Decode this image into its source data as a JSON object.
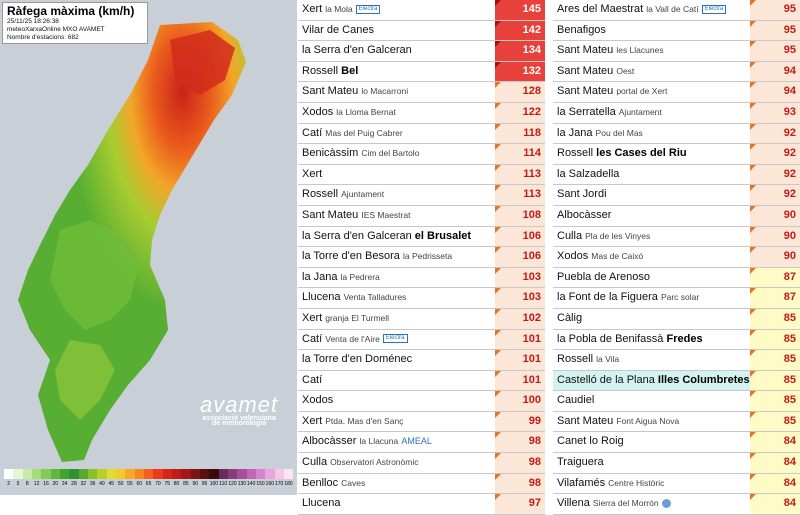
{
  "map": {
    "title": "Ràfega màxima (km/h)",
    "timestamp": "25/11/25 18:26:38",
    "network": "meteoXarxaOnline MXO AVAMET",
    "stations": "Nombre d'estacions: 682",
    "logo": "avamet",
    "logo_sub1": "associació valenciana",
    "logo_sub2": "de meteorologia",
    "scale_labels": [
      "2",
      "5",
      "8",
      "12",
      "16",
      "20",
      "24",
      "28",
      "32",
      "36",
      "40",
      "45",
      "50",
      "55",
      "60",
      "65",
      "70",
      "75",
      "80",
      "85",
      "90",
      "95",
      "100",
      "110",
      "120",
      "130",
      "140",
      "150",
      "160",
      "170",
      "180"
    ],
    "scale_colors": [
      "#ffffff",
      "#e6f5d3",
      "#c8eaa8",
      "#a6dc7c",
      "#84cc58",
      "#5fb838",
      "#3ca72a",
      "#2c9330",
      "#5aa82e",
      "#8cbf2a",
      "#b8d02c",
      "#e2dc2e",
      "#f6c82c",
      "#f8a828",
      "#f68522",
      "#f26020",
      "#ea3a1c",
      "#d8231a",
      "#bf1c1c",
      "#a01818",
      "#7d1313",
      "#5c0f0f",
      "#3f0a0a",
      "#6a2a5a",
      "#8c3c7e",
      "#a84e9c",
      "#c266b8",
      "#d884cc",
      "#e8a6dc",
      "#f4c6e8",
      "#fce4f4"
    ]
  },
  "table_left": [
    {
      "name": "Xert",
      "sub": "la Mola",
      "tag": "Electra",
      "value": "145",
      "style": "red"
    },
    {
      "name": "Vilar de Canes",
      "sub": "",
      "value": "142",
      "style": "red"
    },
    {
      "name": "la Serra d'en Galceran",
      "sub": "",
      "value": "134",
      "style": "red"
    },
    {
      "name": "Rossell",
      "bold": "Bel",
      "value": "132",
      "style": "red"
    },
    {
      "name": "Sant Mateu",
      "sub": "lo Macarroni",
      "value": "128",
      "style": "peach"
    },
    {
      "name": "Xodos",
      "sub": "la Lloma Bernat",
      "value": "122",
      "style": "peach"
    },
    {
      "name": "Catí",
      "sub": "Mas del Puig Cabrer",
      "value": "118",
      "style": "peach"
    },
    {
      "name": "Benicàssim",
      "sub": "Cim del Bartolo",
      "value": "114",
      "style": "peach"
    },
    {
      "name": "Xert",
      "sub": "",
      "value": "113",
      "style": "peach"
    },
    {
      "name": "Rossell",
      "sub": "Ajuntament",
      "value": "113",
      "style": "peach"
    },
    {
      "name": "Sant Mateu",
      "sub": "IES Maestrat",
      "value": "108",
      "style": "peach"
    },
    {
      "name": "la Serra d'en Galceran",
      "bold": "el Brusalet",
      "value": "106",
      "style": "peach"
    },
    {
      "name": "la Torre d'en Besora",
      "sub": "la Pedrisseta",
      "value": "106",
      "style": "peach"
    },
    {
      "name": "la Jana",
      "sub": "la Pedrera",
      "value": "103",
      "style": "peach"
    },
    {
      "name": "Llucena",
      "sub": "Venta Talladures",
      "value": "103",
      "style": "peach"
    },
    {
      "name": "Xert",
      "sub": "granja El Turmell",
      "value": "102",
      "style": "peach"
    },
    {
      "name": "Catí",
      "sub": "Venta de l'Aire",
      "tag": "Electra",
      "value": "101",
      "style": "peach"
    },
    {
      "name": "la Torre d'en Doménec",
      "sub": "",
      "value": "101",
      "style": "peach"
    },
    {
      "name": "Catí",
      "sub": "",
      "value": "101",
      "style": "peach"
    },
    {
      "name": "Xodos",
      "sub": "",
      "value": "100",
      "style": "peach"
    },
    {
      "name": "Xert",
      "sub": "Ptda. Mas d'en Sanç",
      "value": "99",
      "style": "peach"
    },
    {
      "name": "Albocàsser",
      "sub": "la Llacuna",
      "blue": "AMEAL",
      "value": "98",
      "style": "peach"
    },
    {
      "name": "Culla",
      "sub": "Observatori Astronòmic",
      "value": "98",
      "style": "peach"
    },
    {
      "name": "Benlloc",
      "sub": "Caves",
      "value": "98",
      "style": "peach"
    },
    {
      "name": "Llucena",
      "sub": "",
      "value": "97",
      "style": "peach"
    }
  ],
  "table_right": [
    {
      "name": "Ares del Maestrat",
      "sub": "la Vall de Catí",
      "tag": "Electra",
      "value": "95",
      "style": "peach"
    },
    {
      "name": "Benafigos",
      "sub": "",
      "value": "95",
      "style": "peach"
    },
    {
      "name": "Sant Mateu",
      "sub": "les Llacunes",
      "value": "95",
      "style": "peach"
    },
    {
      "name": "Sant Mateu",
      "sub": "Oest",
      "value": "94",
      "style": "peach"
    },
    {
      "name": "Sant Mateu",
      "sub": "portal de Xert",
      "value": "94",
      "style": "peach"
    },
    {
      "name": "la Serratella",
      "sub": "Ajuntament",
      "value": "93",
      "style": "peach"
    },
    {
      "name": "la Jana",
      "sub": "Pou del Mas",
      "value": "92",
      "style": "peach"
    },
    {
      "name": "Rossell",
      "bold": "les Cases del Riu",
      "value": "92",
      "style": "peach"
    },
    {
      "name": "la Salzadella",
      "sub": "",
      "value": "92",
      "style": "peach"
    },
    {
      "name": "Sant Jordi",
      "sub": "",
      "value": "92",
      "style": "peach"
    },
    {
      "name": "Albocàsser",
      "sub": "",
      "value": "90",
      "style": "peach"
    },
    {
      "name": "Culla",
      "sub": "Pla de les Vinyes",
      "value": "90",
      "style": "peach"
    },
    {
      "name": "Xodos",
      "sub": "Mas de Caixó",
      "value": "90",
      "style": "peach"
    },
    {
      "name": "Puebla de Arenoso",
      "sub": "",
      "value": "87",
      "style": "yellow"
    },
    {
      "name": "la Font de la Figuera",
      "sub": "Parc solar",
      "value": "87",
      "style": "yellow"
    },
    {
      "name": "Càlig",
      "sub": "",
      "value": "85",
      "style": "yellow"
    },
    {
      "name": "la Pobla de Benifassà",
      "bold": "Fredes",
      "value": "85",
      "style": "yellow"
    },
    {
      "name": "Rossell",
      "sub": "la Vila",
      "value": "85",
      "style": "yellow"
    },
    {
      "name": "Castelló de la Plana",
      "bold": "Illes Columbretes",
      "value": "85",
      "style": "yellow",
      "cyan": true
    },
    {
      "name": "Caudiel",
      "sub": "",
      "value": "85",
      "style": "yellow"
    },
    {
      "name": "Sant Mateu",
      "sub": "Font Aigua Nova",
      "value": "85",
      "style": "yellow"
    },
    {
      "name": "Canet lo Roig",
      "sub": "",
      "value": "84",
      "style": "yellow"
    },
    {
      "name": "Traiguera",
      "sub": "",
      "value": "84",
      "style": "yellow"
    },
    {
      "name": "Vilafamés",
      "sub": "Centre Històric",
      "value": "84",
      "style": "yellow"
    },
    {
      "name": "Villena",
      "sub": "Sierra del Morrón",
      "globe": true,
      "value": "84",
      "style": "yellow"
    }
  ]
}
